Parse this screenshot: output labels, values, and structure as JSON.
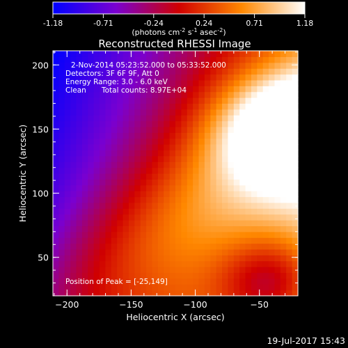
{
  "chart_data": {
    "type": "heatmap",
    "title": "Reconstructed RHESSI Image",
    "xlabel": "Heliocentric X (arcsec)",
    "ylabel": "Heliocentric Y (arcsec)",
    "xlim": [
      -211,
      -20
    ],
    "ylim": [
      20,
      211
    ],
    "x_ticks": [
      -200,
      -150,
      -100,
      -50
    ],
    "y_ticks": [
      50,
      100,
      150,
      200
    ],
    "colorbar": {
      "min": -1.18,
      "max": 1.18,
      "ticks": [
        "-1.18",
        "-0.71",
        "-0.24",
        "0.24",
        "0.71",
        "1.18"
      ],
      "label_prefix": "(photons cm",
      "label_exp1": "-2",
      "label_mid": " s",
      "label_exp2": "-1",
      "label_mid2": " asec",
      "label_exp3": "-2",
      "label_suffix": ")"
    },
    "annotations": {
      "time_range": "2-Nov-2014 05:23:52.000 to 05:33:52.000",
      "detectors": "Detectors: 3F 6F 9F, Att 0",
      "energy_range": "Energy Range: 3.0 - 6.0 keV",
      "clean": "Clean",
      "total_counts": "Total counts: 8.97E+04",
      "peak": "Position of Peak = [-25,149]"
    },
    "peak_position": [
      -25,
      149
    ],
    "image_grid": {
      "nx": 42,
      "ny": 42,
      "features": [
        {
          "kind": "peak",
          "x": -25,
          "y": 149,
          "value": 1.18
        },
        {
          "kind": "ridge",
          "x": -95,
          "y": 95,
          "value": 0.45
        },
        {
          "kind": "minimum",
          "x": -210,
          "y": 210,
          "value": -1.18
        }
      ]
    }
  },
  "timestamp": "19-Jul-2017 15:43"
}
